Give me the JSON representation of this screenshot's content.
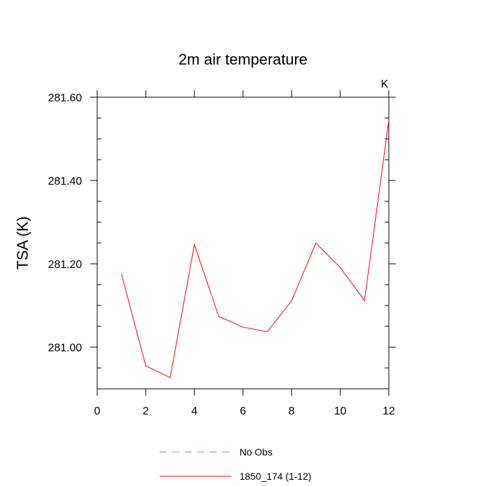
{
  "chart_data": {
    "type": "line",
    "title": "2m air temperature",
    "ylabel": "TSA  (K)",
    "xlabel": "",
    "units_label": "K",
    "xlim": [
      0,
      12
    ],
    "ylim": [
      280.9,
      281.6
    ],
    "x_ticks": [
      0,
      2,
      4,
      6,
      8,
      10,
      12
    ],
    "x_tick_labels": [
      "0",
      "2",
      "4",
      "6",
      "8",
      "10",
      "12"
    ],
    "y_ticks": [
      281.0,
      281.2,
      281.4,
      281.6
    ],
    "y_tick_labels": [
      "281.00",
      "281.20",
      "281.40",
      "281.60"
    ],
    "grid": false,
    "legend_position": "bottom",
    "series": [
      {
        "name": "1850_174 (1-12)",
        "color": "#ff0000",
        "style": "solid",
        "x": [
          1,
          2,
          3,
          4,
          5,
          6,
          7,
          8,
          9,
          10,
          11,
          12
        ],
        "values": [
          281.175,
          280.955,
          280.927,
          281.246,
          281.074,
          281.048,
          281.037,
          281.111,
          281.25,
          281.191,
          281.112,
          281.545
        ]
      }
    ],
    "legend": [
      {
        "label": "No Obs",
        "color": "#8080ff",
        "style": "dashed"
      },
      {
        "label": "1850_174 (1-12)",
        "color": "#ff0000",
        "style": "solid"
      }
    ]
  }
}
